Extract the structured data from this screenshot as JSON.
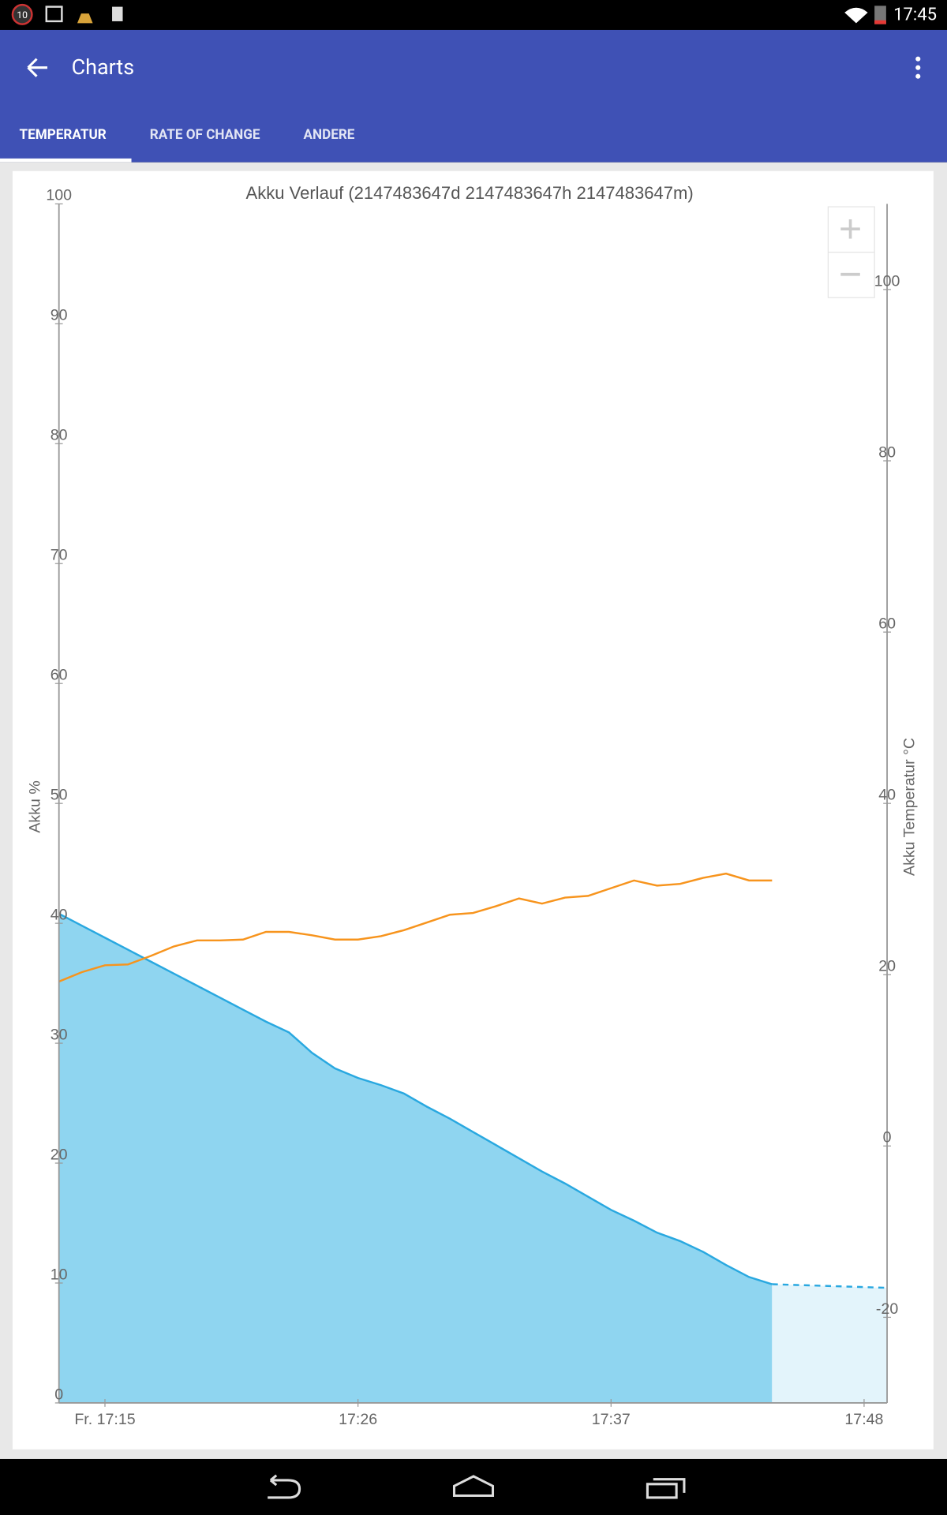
{
  "status_bar": {
    "badge": "10",
    "time": "17:45"
  },
  "app_bar": {
    "title": "Charts"
  },
  "tabs": {
    "items": [
      "TEMPERATUR",
      "RATE OF CHANGE",
      "ANDERE"
    ],
    "selected": 0
  },
  "chart_data": {
    "type": "line",
    "title": "Akku Verlauf (2147483647d 2147483647h 2147483647m)",
    "y_label": "Akku %",
    "y2_label": "Akku Temperatur °C",
    "x": [
      "17:13",
      "17:14",
      "17:15",
      "17:16",
      "17:17",
      "17:18",
      "17:19",
      "17:20",
      "17:21",
      "17:22",
      "17:23",
      "17:24",
      "17:25",
      "17:26",
      "17:27",
      "17:28",
      "17:29",
      "17:30",
      "17:31",
      "17:32",
      "17:33",
      "17:34",
      "17:35",
      "17:36",
      "17:37",
      "17:38",
      "17:39",
      "17:40",
      "17:41",
      "17:42",
      "17:43",
      "17:44",
      "17:49"
    ],
    "xlim": [
      "17:13",
      "17:49"
    ],
    "xticks": [
      {
        "value": "17:15",
        "label": "Fr. 17:15"
      },
      "17:26",
      "17:37",
      "17:48"
    ],
    "ylim": [
      0,
      100
    ],
    "yticks": [
      0,
      10,
      20,
      30,
      40,
      50,
      60,
      70,
      80,
      90,
      100
    ],
    "y2lim": [
      -30,
      110
    ],
    "y2ticks": [
      -20,
      0,
      20,
      40,
      60,
      80,
      100
    ],
    "grid": false,
    "series": [
      {
        "color": "#29a8e0",
        "fill": "#8fd5f0",
        "axis": "y",
        "values": [
          40.8,
          39.8,
          38.8,
          37.8,
          36.8,
          35.8,
          34.8,
          33.8,
          32.8,
          31.8,
          30.9,
          29.2,
          27.9,
          27.1,
          26.5,
          25.8,
          24.7,
          23.7,
          22.6,
          21.5,
          20.4,
          19.3,
          18.3,
          17.2,
          16.1,
          15.2,
          14.2,
          13.5,
          12.6,
          11.5,
          10.5,
          9.9,
          null
        ]
      },
      {
        "color": "#29a8e0",
        "fill": "#e3f4fb",
        "axis": "y",
        "dashed": true,
        "values": [
          null,
          null,
          null,
          null,
          null,
          null,
          null,
          null,
          null,
          null,
          null,
          null,
          null,
          null,
          null,
          null,
          null,
          null,
          null,
          null,
          null,
          null,
          null,
          null,
          null,
          null,
          null,
          null,
          null,
          null,
          null,
          9.9,
          9.6
        ]
      },
      {
        "color": "#f7941d",
        "axis": "y2",
        "values": [
          19.2,
          20.3,
          21.1,
          21.2,
          22.2,
          23.3,
          24.0,
          24.0,
          24.1,
          25.0,
          25.0,
          24.6,
          24.1,
          24.1,
          24.5,
          25.2,
          26.1,
          27.0,
          27.2,
          28.0,
          28.9,
          28.3,
          29.0,
          29.2,
          30.1,
          31.0,
          30.4,
          30.6,
          31.3,
          31.8,
          31.0,
          31.0,
          null
        ]
      }
    ]
  }
}
